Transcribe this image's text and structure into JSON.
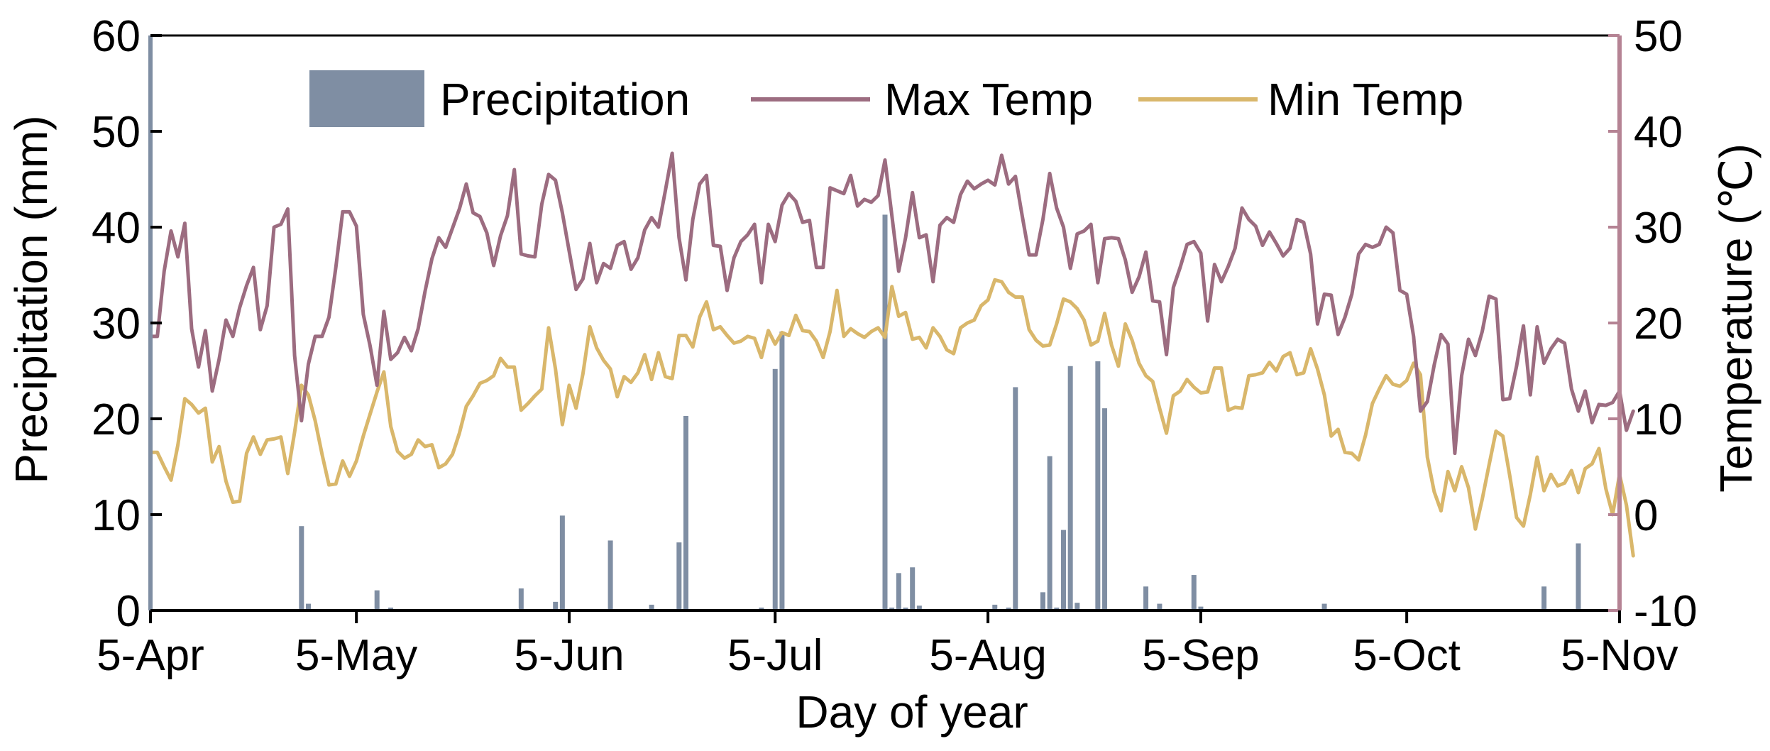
{
  "chart_data": {
    "type": "bar+line",
    "title": "",
    "xlabel": "Day of year",
    "ylabel_left": "Precipitation (mm)",
    "ylabel_right": "Temperature (℃)",
    "ylim_left": [
      0,
      60
    ],
    "ylim_right": [
      -10,
      50
    ],
    "yticks_left": [
      "0",
      "10",
      "20",
      "30",
      "40",
      "50",
      "60"
    ],
    "yticks_right": [
      "-10",
      "0",
      "10",
      "20",
      "30",
      "40",
      "50"
    ],
    "x_start_label": "5-Apr",
    "x_range_days": [
      0,
      214
    ],
    "xticks": [
      {
        "day": 0,
        "label": "5-Apr"
      },
      {
        "day": 30,
        "label": "5-May"
      },
      {
        "day": 61,
        "label": "5-Jun"
      },
      {
        "day": 91,
        "label": "5-Jul"
      },
      {
        "day": 122,
        "label": "5-Aug"
      },
      {
        "day": 153,
        "label": "5-Sep"
      },
      {
        "day": 183,
        "label": "5-Oct"
      },
      {
        "day": 214,
        "label": "5-Nov"
      }
    ],
    "legend": {
      "position": "top-center",
      "entries": [
        "Precipitation",
        "Max Temp",
        "Min Temp"
      ]
    },
    "colors": {
      "precipitation": "#7f8ea3",
      "max_temp": "#9c6c80",
      "min_temp": "#d9b76b",
      "right_axis": "#b58394",
      "left_axis": "#7f8ea3"
    },
    "series": [
      {
        "name": "Precipitation",
        "axis": "left",
        "kind": "bar",
        "days": [
          22,
          23,
          33,
          35,
          54,
          59,
          60,
          67,
          73,
          77,
          78,
          89,
          91,
          92,
          107,
          108,
          109,
          110,
          111,
          112,
          123,
          125,
          126,
          130,
          131,
          132,
          133,
          134,
          135,
          138,
          139,
          145,
          147,
          152,
          153,
          171,
          203,
          208
        ],
        "values": [
          8.8,
          0.7,
          2.1,
          0.3,
          2.3,
          0.9,
          9.9,
          7.3,
          0.6,
          7.1,
          20.3,
          0.3,
          25.2,
          29.1,
          41.3,
          0.3,
          3.9,
          0.3,
          4.5,
          0.5,
          0.6,
          0.3,
          23.3,
          1.9,
          16.1,
          0.3,
          8.4,
          25.5,
          0.8,
          26.0,
          21.1,
          2.5,
          0.7,
          3.7,
          0.4,
          0.7,
          2.5,
          7.0
        ]
      },
      {
        "name": "Max Temp",
        "axis": "right",
        "kind": "line",
        "values": [
          18.6,
          18.6,
          25.4,
          29.6,
          26.9,
          30.4,
          19.4,
          15.4,
          19.2,
          12.9,
          16.2,
          20.3,
          18.6,
          21.6,
          23.9,
          25.8,
          19.3,
          21.8,
          30.0,
          30.3,
          31.9,
          16.6,
          9.8,
          15.7,
          18.6,
          18.6,
          20.6,
          25.8,
          31.6,
          31.6,
          30.1,
          20.9,
          17.6,
          13.5,
          21.2,
          16.2,
          16.9,
          18.5,
          17.1,
          19.4,
          23.3,
          26.7,
          28.9,
          27.9,
          29.9,
          31.9,
          34.5,
          31.5,
          31.1,
          29.4,
          26.0,
          29.1,
          31.2,
          36.0,
          27.2,
          27.0,
          26.9,
          32.4,
          35.5,
          34.9,
          31.5,
          27.5,
          23.5,
          24.6,
          28.3,
          24.2,
          26.2,
          25.7,
          28.1,
          28.5,
          25.6,
          26.8,
          29.7,
          31.0,
          30.0,
          33.8,
          37.7,
          28.9,
          24.5,
          30.8,
          34.5,
          35.4,
          28.1,
          28.0,
          23.4,
          26.8,
          28.5,
          29.2,
          30.3,
          24.2,
          30.3,
          28.5,
          32.3,
          33.5,
          32.7,
          30.5,
          30.7,
          25.8,
          25.8,
          34.1,
          33.8,
          33.5,
          35.4,
          32.2,
          32.9,
          32.6,
          33.3,
          37.0,
          31.2,
          25.4,
          28.9,
          33.6,
          28.9,
          29.2,
          24.3,
          30.2,
          31.0,
          30.5,
          33.4,
          34.8,
          34.0,
          34.5,
          34.9,
          34.4,
          37.5,
          34.5,
          35.3,
          31.1,
          27.1,
          27.1,
          30.8,
          35.6,
          32.0,
          30.0,
          25.7,
          29.3,
          29.6,
          30.3,
          24.2,
          28.8,
          28.9,
          28.8,
          26.6,
          23.2,
          24.8,
          27.4,
          22.3,
          22.2,
          16.7,
          23.7,
          25.8,
          28.2,
          28.5,
          27.3,
          20.2,
          26.1,
          24.3,
          25.9,
          27.8,
          32.0,
          30.8,
          30.1,
          28.1,
          29.5,
          28.3,
          27.0,
          27.8,
          30.8,
          30.5,
          27.2,
          19.9,
          23.0,
          22.9,
          18.8,
          20.6,
          23.0,
          27.2,
          28.2,
          27.9,
          28.2,
          30.0,
          29.4,
          23.4,
          23.0,
          18.6,
          10.8,
          11.8,
          15.6,
          18.8,
          17.8,
          6.4,
          14.5,
          18.3,
          16.6,
          19.1,
          22.8,
          22.5,
          12.0,
          12.1,
          15.5,
          19.7,
          12.5,
          19.6,
          15.8,
          17.3,
          18.3,
          17.9,
          13.1,
          10.8,
          12.9,
          9.6,
          11.5,
          11.4,
          11.7,
          12.9,
          8.8,
          10.8
        ]
      },
      {
        "name": "Min Temp",
        "axis": "right",
        "kind": "line",
        "values": [
          6.5,
          6.5,
          5.0,
          3.6,
          7.3,
          12.1,
          11.5,
          10.6,
          11.1,
          5.5,
          7.1,
          3.5,
          1.3,
          1.4,
          6.4,
          8.1,
          6.3,
          7.8,
          7.9,
          8.1,
          4.3,
          8.6,
          13.5,
          12.5,
          9.8,
          6.3,
          3.1,
          3.2,
          5.6,
          4.0,
          5.6,
          8.2,
          10.5,
          12.8,
          14.9,
          9.2,
          6.6,
          5.9,
          6.3,
          7.8,
          7.1,
          7.3,
          4.9,
          5.3,
          6.3,
          8.5,
          11.3,
          12.4,
          13.7,
          14.0,
          14.5,
          16.3,
          15.4,
          15.4,
          10.9,
          11.6,
          12.4,
          13.1,
          19.5,
          15.2,
          9.4,
          13.5,
          11.1,
          14.7,
          19.6,
          17.4,
          16.1,
          15.2,
          12.3,
          14.4,
          13.8,
          14.8,
          16.7,
          14.1,
          16.9,
          14.4,
          14.2,
          18.7,
          18.7,
          17.5,
          20.6,
          22.2,
          19.3,
          19.6,
          18.7,
          17.9,
          18.1,
          18.6,
          18.4,
          16.4,
          19.2,
          17.8,
          19.0,
          18.7,
          20.8,
          19.2,
          19.1,
          18.1,
          16.4,
          19.1,
          23.4,
          18.6,
          19.4,
          18.9,
          18.5,
          19.1,
          19.5,
          18.5,
          23.8,
          20.7,
          21.1,
          18.3,
          18.5,
          17.4,
          19.5,
          18.6,
          17.2,
          16.8,
          19.5,
          20.0,
          20.3,
          21.8,
          22.4,
          24.5,
          24.3,
          23.2,
          22.7,
          22.7,
          19.3,
          18.2,
          17.6,
          17.7,
          19.9,
          22.5,
          22.2,
          21.5,
          20.3,
          17.7,
          18.1,
          21.0,
          17.7,
          15.5,
          19.9,
          18.2,
          15.8,
          14.5,
          13.9,
          11.1,
          8.5,
          12.4,
          12.9,
          14.1,
          13.3,
          12.7,
          12.8,
          15.3,
          15.3,
          10.9,
          11.2,
          11.1,
          14.5,
          14.6,
          14.8,
          15.9,
          15.0,
          16.5,
          16.9,
          14.6,
          14.8,
          17.3,
          15.2,
          12.5,
          8.2,
          8.9,
          6.5,
          6.4,
          5.7,
          8.3,
          11.6,
          13.1,
          14.5,
          13.6,
          13.4,
          14.0,
          15.8,
          14.6,
          6.0,
          2.4,
          0.4,
          4.5,
          2.5,
          5.0,
          2.8,
          -1.5,
          1.6,
          5.2,
          8.7,
          8.2,
          4.1,
          -0.3,
          -1.2,
          2.1,
          6.0,
          2.5,
          4.2,
          3.0,
          3.3,
          4.6,
          2.3,
          4.8,
          5.3,
          6.9,
          2.7,
          0.0,
          4.2,
          1.0,
          -4.3
        ]
      }
    ]
  }
}
